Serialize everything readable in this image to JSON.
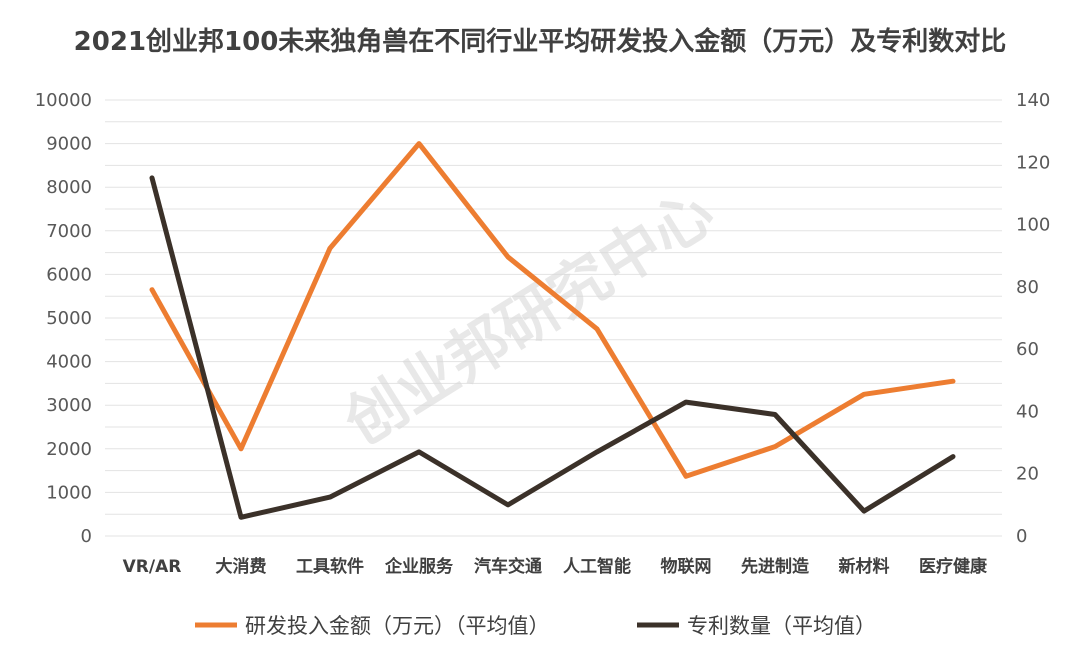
{
  "chart_data": {
    "type": "line",
    "title": "2021创业邦100未来独角兽在不同行业平均研发投入金额（万元）及专利数对比",
    "watermark": "创业邦研究中心",
    "categories": [
      "VR/AR",
      "大消费",
      "工具软件",
      "企业服务",
      "汽车交通",
      "人工智能",
      "物联网",
      "先进制造",
      "新材料",
      "医疗健康"
    ],
    "series": [
      {
        "name": "研发投入金额（万元）（平均值）",
        "axis": "left",
        "color": "#ED7D31",
        "values": [
          5650,
          2000,
          6600,
          9000,
          6400,
          4750,
          1370,
          2050,
          3250,
          3550
        ]
      },
      {
        "name": "专利数量（平均值）",
        "axis": "right",
        "color": "#3B3129",
        "values": [
          115,
          6,
          12.5,
          27,
          10,
          27,
          43,
          39,
          8,
          25.5
        ]
      }
    ],
    "left_axis": {
      "min": 0,
      "max": 10000,
      "step": 1000
    },
    "right_axis": {
      "min": 0,
      "max": 140,
      "step": 20
    },
    "grid": true,
    "legend_position": "bottom"
  }
}
